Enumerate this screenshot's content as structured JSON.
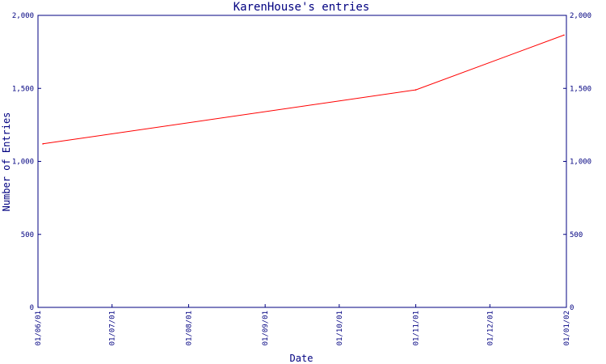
{
  "chart_data": {
    "type": "line",
    "title": "KarenHouse's entries",
    "xlabel": "Date",
    "ylabel": "Number of Entries",
    "x_ticks": [
      "01/06/01",
      "01/07/01",
      "01/08/01",
      "01/09/01",
      "01/10/01",
      "01/11/01",
      "01/12/01",
      "01/01/02"
    ],
    "y_ticks": [
      "0",
      "500",
      "1,000",
      "1,500",
      "2,000"
    ],
    "ylim": [
      0,
      2000
    ],
    "xlim": [
      "2001-06-01",
      "2002-01-01"
    ],
    "grid": false,
    "series": [
      {
        "color": "#ff0000",
        "points": [
          {
            "x": "2001-06-03",
            "y": 1120
          },
          {
            "x": "2001-11-01",
            "y": 1490
          },
          {
            "x": "2001-12-31",
            "y": 1865
          }
        ]
      }
    ],
    "colors": {
      "axis": "#000080",
      "line": "#ff0000",
      "background": "#ffffff"
    }
  }
}
